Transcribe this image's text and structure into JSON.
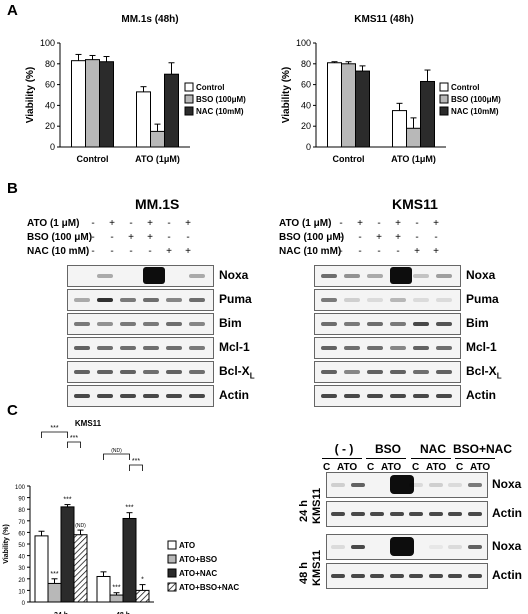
{
  "panels": {
    "a": "A",
    "b": "B",
    "c": "C"
  },
  "chart_data": [
    {
      "type": "bar",
      "title": "MM.1s (48h)",
      "ylabel": "Viability (%)",
      "ylim": [
        0,
        100
      ],
      "yticks": [
        "0",
        "20",
        "40",
        "60",
        "80",
        "100"
      ],
      "categories": [
        "Control",
        "ATO (1μM)"
      ],
      "series": [
        {
          "name": "Control",
          "color": "#ffffff",
          "values": [
            83,
            53
          ],
          "errors": [
            6,
            5
          ]
        },
        {
          "name": "BSO (100μM)",
          "color": "#b8b8b8",
          "values": [
            84,
            15
          ],
          "errors": [
            4,
            7
          ]
        },
        {
          "name": "NAC (10mM)",
          "color": "#2b2b2b",
          "values": [
            82,
            70
          ],
          "errors": [
            5,
            11
          ]
        }
      ],
      "legend": "right"
    },
    {
      "type": "bar",
      "title": "KMS11 (48h)",
      "ylabel": "Viability (%)",
      "ylim": [
        0,
        100
      ],
      "yticks": [
        "0",
        "20",
        "40",
        "60",
        "80",
        "100"
      ],
      "categories": [
        "Control",
        "ATO (1μM)"
      ],
      "series": [
        {
          "name": "Control",
          "color": "#ffffff",
          "values": [
            81,
            35
          ],
          "errors": [
            1,
            7
          ]
        },
        {
          "name": "BSO (100μM)",
          "color": "#b8b8b8",
          "values": [
            80,
            18
          ],
          "errors": [
            2,
            10
          ]
        },
        {
          "name": "NAC (10mM)",
          "color": "#2b2b2b",
          "values": [
            73,
            63
          ],
          "errors": [
            5,
            11
          ]
        }
      ],
      "legend": "right"
    },
    {
      "type": "bar",
      "title": "KMS11",
      "ylabel": "Viability (%)",
      "ylim": [
        0,
        100
      ],
      "yticks": [
        "0",
        "10",
        "20",
        "30",
        "40",
        "50",
        "60",
        "70",
        "80",
        "90",
        "100"
      ],
      "categories": [
        "24 h",
        "48 h"
      ],
      "series": [
        {
          "name": "ATO",
          "color": "#ffffff",
          "values": [
            57,
            22
          ],
          "errors": [
            4,
            4
          ],
          "stars": [
            "",
            ""
          ]
        },
        {
          "name": "ATO+BSO",
          "color": "#b8b8b8",
          "values": [
            16,
            6
          ],
          "errors": [
            4,
            2
          ],
          "stars": [
            "***",
            "***"
          ]
        },
        {
          "name": "ATO+NAC",
          "color": "#2b2b2b",
          "values": [
            82,
            72
          ],
          "errors": [
            2,
            5
          ],
          "stars": [
            "***",
            "***"
          ]
        },
        {
          "name": "ATO+BSO+NAC",
          "color": "hatch",
          "values": [
            58,
            10
          ],
          "errors": [
            4,
            5
          ],
          "stars": [
            "(ND)",
            "*"
          ]
        }
      ],
      "brackets": [
        {
          "group": 0,
          "from": 0,
          "to": 2,
          "label": "***"
        },
        {
          "group": 0,
          "from": 2,
          "to": 3,
          "label": "***"
        },
        {
          "group": 1,
          "from": 0,
          "to": 2,
          "label": "(ND)"
        },
        {
          "group": 1,
          "from": 2,
          "to": 3,
          "label": "***"
        }
      ],
      "legend": "right"
    }
  ],
  "blots_b": {
    "left_title": "MM.1S",
    "right_title": "KMS11",
    "treatments": [
      {
        "label": "ATO (1 μM)",
        "signs": [
          "-",
          "+",
          "-",
          "+",
          "-",
          "+"
        ]
      },
      {
        "label": "BSO (100 μM)",
        "signs": [
          "-",
          "-",
          "+",
          "+",
          "-",
          "-"
        ]
      },
      {
        "label": "NAC (10 mM)",
        "signs": [
          "-",
          "-",
          "-",
          "-",
          "+",
          "+"
        ]
      }
    ],
    "proteins": [
      "Noxa",
      "Puma",
      "Bim",
      "Mcl-1",
      "Bcl-X",
      "Actin"
    ],
    "bclx_subscript": "L"
  },
  "blots_c": {
    "groups": [
      "( - )",
      "BSO",
      "NAC",
      "BSO+NAC"
    ],
    "lane_labels": [
      "C",
      "ATO",
      "C",
      "ATO",
      "C",
      "ATO",
      "C",
      "ATO"
    ],
    "cell_line": "KMS11",
    "timepoints": [
      "24 h",
      "48 h"
    ],
    "proteins": [
      "Noxa",
      "Actin"
    ]
  }
}
